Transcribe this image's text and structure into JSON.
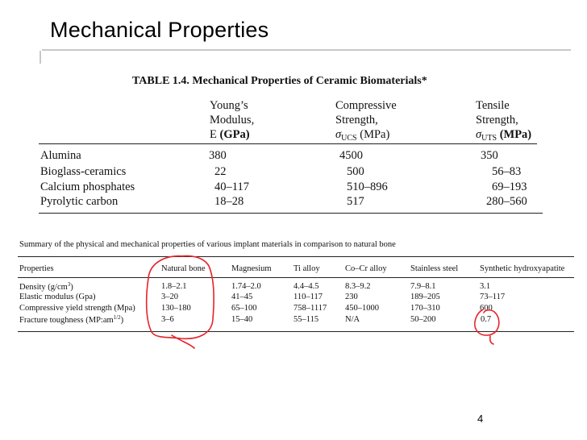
{
  "slide": {
    "title": "Mechanical Properties",
    "page_number": "4",
    "annotation_color": "#e8222a"
  },
  "table1": {
    "caption": "TABLE 1.4.  Mechanical Properties of Ceramic Biomaterials*",
    "columns": [
      {
        "line1": "Young’s",
        "line2": "Modulus,",
        "line3_pre": "E ",
        "line3_unit": "(GPa)"
      },
      {
        "line1": "Compressive",
        "line2": "Strength,",
        "line3_sigma": "σ",
        "line3_sub": "UCS",
        "line3_unit": " (MPa)"
      },
      {
        "line1": "Tensile",
        "line2": "Strength,",
        "line3_sigma": "σ",
        "line3_sub": "UTS",
        "line3_unit": " (MPa)"
      }
    ],
    "rows": [
      {
        "material": "Alumina",
        "youngs": "380",
        "compressive": "4500",
        "tensile": "350"
      },
      {
        "material": "Bioglass-ceramics",
        "youngs": "22",
        "compressive": "500",
        "tensile": "56–83"
      },
      {
        "material": "Calcium phosphates",
        "youngs": "40–117",
        "compressive": "510–896",
        "tensile": "69–193"
      },
      {
        "material": "Pyrolytic carbon",
        "youngs": "18–28",
        "compressive": "517",
        "tensile": "280–560"
      }
    ]
  },
  "table2": {
    "caption": "Summary of the physical and mechanical properties of various implant materials in comparison to natural bone",
    "headers": [
      "Properties",
      "Natural bone",
      "Magnesium",
      "Ti alloy",
      "Co–Cr alloy",
      "Stainless steel",
      "Synthetic hydroxyapatite"
    ],
    "rows": [
      {
        "property": "Density (g/cm",
        "property_sup": "3",
        "property_post": ")",
        "values": [
          "1.8–2.1",
          "1.74–2.0",
          "4.4–4.5",
          "8.3–9.2",
          "7.9–8.1",
          "3.1"
        ]
      },
      {
        "property": "Elastic modulus (Gpa)",
        "property_sup": "",
        "property_post": "",
        "values": [
          "3–20",
          "41–45",
          "110–117",
          "230",
          "189–205",
          "73–117"
        ]
      },
      {
        "property": "Compressive yield strength (Mpa)",
        "property_sup": "",
        "property_post": "",
        "values": [
          "130–180",
          "65–100",
          "758–1117",
          "450–1000",
          "170–310",
          "600"
        ]
      },
      {
        "property": "Fracture toughness (MP:am",
        "property_sup": "1/2",
        "property_post": ")",
        "values": [
          "3–6",
          "15–40",
          "55–115",
          "N/A",
          "50–200",
          "0.7"
        ]
      }
    ]
  }
}
